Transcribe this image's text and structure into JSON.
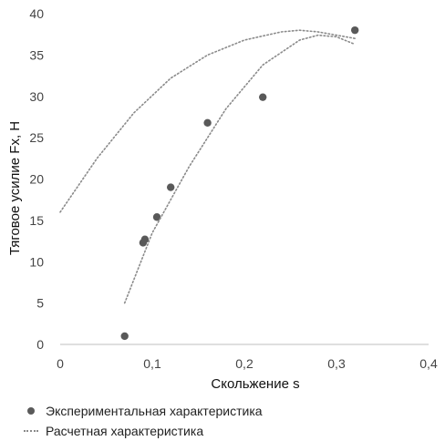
{
  "chart_data": {
    "type": "scatter",
    "title": "",
    "xlabel": "Скольжение s",
    "ylabel": "Тяговое усилие Fx, Н",
    "xlim": [
      0,
      0.4
    ],
    "ylim": [
      0,
      40
    ],
    "x_ticks": [
      "0",
      "0,1",
      "0,2",
      "0,3",
      "0,4"
    ],
    "y_ticks": [
      "0",
      "5",
      "10",
      "15",
      "20",
      "25",
      "30",
      "35",
      "40"
    ],
    "grid": false,
    "legend_position": "bottom",
    "series": [
      {
        "name": "Экспериментальная характеристика",
        "kind": "points",
        "color": "#595959",
        "points": [
          [
            0.07,
            1.0
          ],
          [
            0.09,
            12.3
          ],
          [
            0.092,
            12.7
          ],
          [
            0.105,
            15.4
          ],
          [
            0.12,
            19.0
          ],
          [
            0.16,
            26.8
          ],
          [
            0.22,
            29.9
          ],
          [
            0.32,
            38.0
          ]
        ]
      },
      {
        "name": "",
        "kind": "dotted-line",
        "color": "#8a8a8a",
        "points": [
          [
            0.07,
            5.0
          ],
          [
            0.1,
            13.5
          ],
          [
            0.14,
            21.5
          ],
          [
            0.18,
            28.5
          ],
          [
            0.22,
            33.8
          ],
          [
            0.26,
            36.8
          ],
          [
            0.28,
            37.4
          ],
          [
            0.3,
            37.2
          ],
          [
            0.32,
            36.3
          ]
        ]
      },
      {
        "name": "Расчетная характеристика",
        "kind": "dotted-line",
        "color": "#8a8a8a",
        "points": [
          [
            0.0,
            16.0
          ],
          [
            0.04,
            22.5
          ],
          [
            0.08,
            28.0
          ],
          [
            0.12,
            32.2
          ],
          [
            0.16,
            35.0
          ],
          [
            0.2,
            36.8
          ],
          [
            0.24,
            37.8
          ],
          [
            0.26,
            38.0
          ],
          [
            0.28,
            37.8
          ],
          [
            0.32,
            37.0
          ]
        ]
      }
    ]
  }
}
